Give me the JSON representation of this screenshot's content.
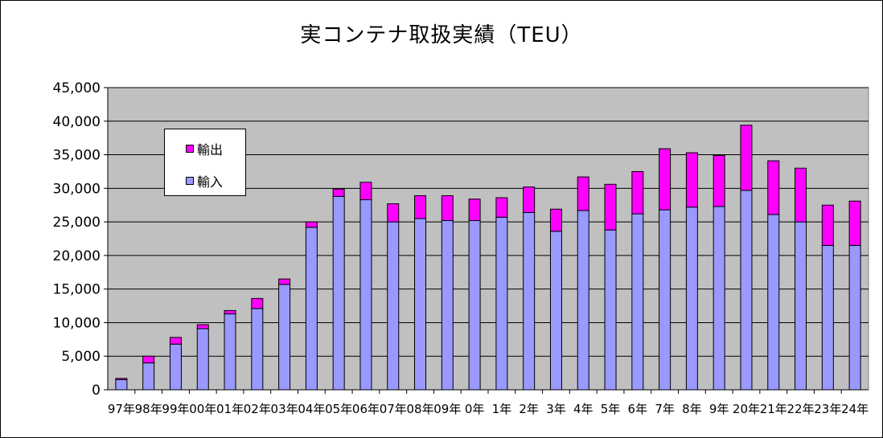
{
  "chart_data": {
    "type": "bar",
    "stacked": true,
    "title": "実コンテナ取扱実績（TEU）",
    "categories": [
      "97年",
      "98年",
      "99年",
      "00年",
      "01年",
      "02年",
      "03年",
      "04年",
      "05年",
      "06年",
      "07年",
      "08年",
      "09年",
      "10年",
      "11年",
      "12年",
      "13年",
      "14年",
      "15年",
      "16年",
      "17年",
      "18年",
      "19年",
      "20年",
      "21年",
      "22年",
      "23年",
      "24年"
    ],
    "series": [
      {
        "name": "輸入",
        "color": "#9999ff",
        "values": [
          1500,
          4000,
          6800,
          9100,
          11300,
          12100,
          15700,
          24200,
          28800,
          28300,
          25000,
          25500,
          25200,
          25200,
          25700,
          26400,
          23600,
          26700,
          23800,
          26200,
          26800,
          27200,
          27300,
          29700,
          26100,
          25000,
          21500,
          21500
        ]
      },
      {
        "name": "輸出",
        "color": "#ff00ff",
        "values": [
          200,
          1000,
          1000,
          600,
          500,
          1500,
          800,
          800,
          1100,
          2600,
          2700,
          3400,
          3700,
          3200,
          2900,
          3800,
          3300,
          5000,
          6800,
          6300,
          9100,
          8100,
          7600,
          9700,
          8000,
          8000,
          6000,
          6600
        ]
      }
    ],
    "category_labels_shown": [
      "97年",
      "98年",
      "99年",
      "00年",
      "01年",
      "02年",
      "03年",
      "04年",
      "05年",
      "06年",
      "07年",
      "08年",
      "09年",
      "0年",
      "1年",
      "2年",
      "3年",
      "4年",
      "5年",
      "6年",
      "7年",
      "8年",
      "9年",
      "20年",
      "21年",
      "22年",
      "23年",
      "24年"
    ],
    "ylim": [
      0,
      45000
    ],
    "yticks": [
      0,
      5000,
      10000,
      15000,
      20000,
      25000,
      30000,
      35000,
      40000,
      45000
    ],
    "ytick_labels": [
      "0",
      "5,000",
      "10,000",
      "15,000",
      "20,000",
      "25,000",
      "30,000",
      "35,000",
      "40,000",
      "45,000"
    ],
    "xlabel": "",
    "ylabel": "",
    "grid": true,
    "plot_background": "#c0c0c0",
    "legend": {
      "position": "upper-left",
      "entries": [
        "輸出",
        "輸入"
      ]
    }
  },
  "legend_colors": {
    "export": "#ff00ff",
    "import": "#9999ff"
  }
}
